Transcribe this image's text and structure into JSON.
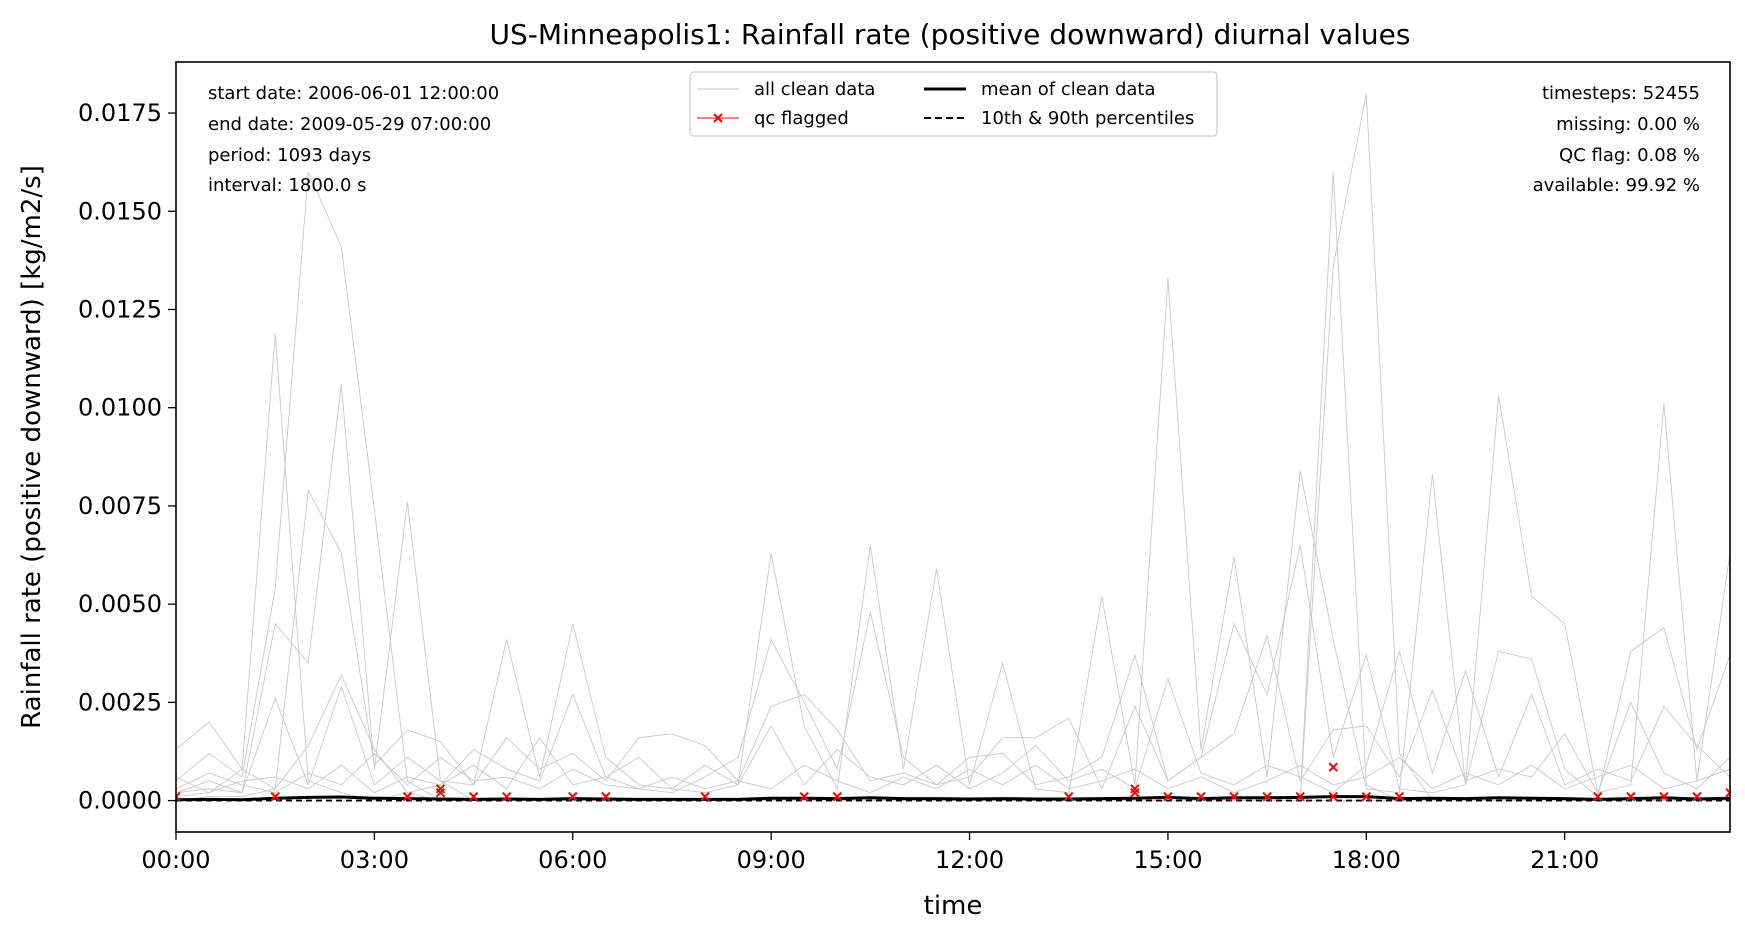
{
  "chart_data": {
    "type": "line",
    "title": "US-Minneapolis1: Rainfall rate (positive downward) diurnal values",
    "xlabel": "time",
    "ylabel": "Rainfall rate (positive downward) [kg/m2/s]",
    "xlim": [
      0,
      23.5
    ],
    "ylim": [
      -0.0008,
      0.0188
    ],
    "grid": false,
    "legend_placement": "upper center",
    "x_ticks": [
      {
        "v": 0,
        "label": "00:00"
      },
      {
        "v": 3,
        "label": "03:00"
      },
      {
        "v": 6,
        "label": "06:00"
      },
      {
        "v": 9,
        "label": "09:00"
      },
      {
        "v": 12,
        "label": "12:00"
      },
      {
        "v": 15,
        "label": "15:00"
      },
      {
        "v": 18,
        "label": "18:00"
      },
      {
        "v": 21,
        "label": "21:00"
      }
    ],
    "y_ticks": [
      {
        "v": 0,
        "label": "0.0000"
      },
      {
        "v": 0.0025,
        "label": "0.0025"
      },
      {
        "v": 0.005,
        "label": "0.0050"
      },
      {
        "v": 0.0075,
        "label": "0.0075"
      },
      {
        "v": 0.01,
        "label": "0.0100"
      },
      {
        "v": 0.0125,
        "label": "0.0125"
      },
      {
        "v": 0.015,
        "label": "0.0150"
      },
      {
        "v": 0.0175,
        "label": "0.0175"
      }
    ],
    "legend": [
      {
        "label": "all clean data",
        "color": "#c8c8c8",
        "style": "thin-line"
      },
      {
        "label": "qc flagged",
        "color": "#ff0000",
        "style": "line-x-marker"
      },
      {
        "label": "mean of clean data",
        "color": "#000000",
        "style": "thick-line"
      },
      {
        "label": "10th & 90th percentiles",
        "color": "#000000",
        "style": "dashed-line"
      }
    ],
    "info_left": [
      "start date: 2006-06-01 12:00:00",
      "end date: 2009-05-29 07:00:00",
      "period: 1093 days",
      "interval: 1800.0 s"
    ],
    "info_right": [
      "timesteps: 52455",
      "missing: 0.00 %",
      "QC flag: 0.08 %",
      "available: 99.92 %"
    ],
    "colors": {
      "clean": "#c8c8c8",
      "flag": "#ff0000",
      "mean": "#000000"
    },
    "clean_series_x": [
      0,
      0.5,
      1,
      1.5,
      2,
      2.5,
      3,
      3.5,
      4,
      4.5,
      5,
      5.5,
      6,
      6.5,
      7,
      7.5,
      8,
      8.5,
      9,
      9.5,
      10,
      10.5,
      11,
      11.5,
      12,
      12.5,
      13,
      13.5,
      14,
      14.5,
      15,
      15.5,
      16,
      16.5,
      17,
      17.5,
      18,
      18.5,
      19,
      19.5,
      20,
      20.5,
      21,
      21.5,
      22,
      22.5,
      23,
      23.5
    ],
    "clean_series": [
      [
        0.0013,
        0.002,
        0.0008,
        0.0119,
        0.0005,
        0.0002,
        0,
        0.0002,
        0,
        0,
        0,
        0,
        0,
        0,
        0,
        0,
        0,
        0,
        0,
        0,
        0,
        0,
        0,
        0,
        0,
        0,
        0,
        0,
        0,
        0,
        0,
        0,
        0,
        0,
        0,
        0.016,
        0.0004,
        0,
        0,
        0,
        0,
        0,
        0,
        0,
        0,
        0,
        0,
        0
      ],
      [
        0.0005,
        0.0012,
        0.0006,
        0.0054,
        0.016,
        0.0141,
        0.0074,
        0.0005,
        0,
        0,
        0,
        0,
        0,
        0,
        0,
        0,
        0,
        0,
        0,
        0,
        0,
        0,
        0,
        0,
        0,
        0,
        0,
        0,
        0,
        0,
        0,
        0,
        0,
        0,
        0,
        0.0136,
        0.018,
        0.0012,
        0,
        0,
        0,
        0,
        0,
        0,
        0,
        0,
        0,
        0
      ],
      [
        0.0002,
        0.0003,
        0.0002,
        0.0045,
        0.0035,
        0.0106,
        0.0008,
        0.0076,
        0.0005,
        0,
        0,
        0,
        0,
        0,
        0,
        0,
        0,
        0,
        0,
        0,
        0,
        0,
        0,
        0,
        0,
        0,
        0,
        0,
        0,
        0,
        0,
        0,
        0,
        0,
        0,
        0,
        0,
        0,
        0,
        0,
        0,
        0,
        0,
        0,
        0,
        0,
        0,
        0
      ],
      [
        0.0001,
        0.0002,
        0.0008,
        0.0003,
        0.0079,
        0.0063,
        0.0009,
        0.0018,
        0.0015,
        0.0004,
        0.0041,
        0.0006,
        0.0045,
        0.0011,
        0.0004,
        0.0003,
        0.0002,
        0.0004,
        0.0063,
        0.0019,
        0.0003,
        0.0065,
        0.0008,
        0.0059,
        0.0004,
        0.0035,
        0.0003,
        0.0002,
        0.0052,
        0.0004,
        0.0133,
        0.0013,
        0.0062,
        0.0006,
        0.0084,
        0.0041,
        0.0003,
        0.0002,
        0.0083,
        0.0004,
        0.0103,
        0.0052,
        0.0045,
        0.0002,
        0.0004,
        0.0101,
        0.0005,
        0.0063
      ],
      [
        0,
        0.0001,
        0.0001,
        0.0003,
        0.0014,
        0.0032,
        0.0013,
        0.0002,
        0.0004,
        0.0013,
        0.0008,
        0.0005,
        0.0027,
        0.0006,
        0.0003,
        0.0002,
        0.0006,
        0.0011,
        0.0041,
        0.0025,
        0.0008,
        0.0048,
        0.0011,
        0.0004,
        0.0011,
        0.0012,
        0.0004,
        0.0006,
        0.0011,
        0.0037,
        0.0005,
        0.0011,
        0.0045,
        0.0027,
        0.0065,
        0.0011,
        0.0037,
        0.0003,
        0.0002,
        0.0004,
        0.0038,
        0.0036,
        0.0008,
        0.0001,
        0.0038,
        0.0044,
        0.0013,
        0.0037
      ],
      [
        0.0002,
        0.0005,
        0.0002,
        0.0026,
        0.0004,
        0.0029,
        0.0004,
        0.0011,
        0.0005,
        0.0004,
        0.0016,
        0.0008,
        0.0012,
        0.0005,
        0.0016,
        0.0017,
        0.0014,
        0.0005,
        0.0024,
        0.0027,
        0.0018,
        0.0005,
        0.0007,
        0.0004,
        0.0006,
        0.0016,
        0.0016,
        0.0021,
        0.0003,
        0.0024,
        0.0005,
        0.0011,
        0.0017,
        0.0042,
        0.0005,
        0.0018,
        0.0019,
        0.0006,
        0.0028,
        0.0005,
        0.0008,
        0.0006,
        0.0017,
        0.0002,
        0.0025,
        0.0007,
        0.0003,
        0.0011
      ],
      [
        0.0006,
        0.0002,
        0.0005,
        0.0006,
        0.0003,
        0.0009,
        0.0002,
        0.0006,
        0.0004,
        0.0009,
        0.0003,
        0.0016,
        0.0004,
        0.0006,
        0.0011,
        0.0003,
        0.0009,
        0.0004,
        0.0019,
        0.0004,
        0.0013,
        0.0006,
        0.0004,
        0.0009,
        0.0003,
        0.0007,
        0.0014,
        0.0005,
        0.0008,
        0.0003,
        0.0031,
        0.0007,
        0.0004,
        0.0009,
        0.0006,
        0.0002,
        0.0009,
        0.0038,
        0.0007,
        0.0033,
        0.0006,
        0.0027,
        0.0004,
        0.0008,
        0.0005,
        0.0024,
        0.0014,
        0.0006
      ],
      [
        0.0003,
        0.0007,
        0.0004,
        0.0002,
        0.0007,
        0.0004,
        0.0012,
        0.0004,
        0.0011,
        0.0005,
        0.0006,
        0.0003,
        0.0008,
        0.0004,
        0.0003,
        0.0006,
        0.0003,
        0.0005,
        0.0003,
        0.0009,
        0.0005,
        0.0002,
        0.0006,
        0.0003,
        0.0008,
        0.0004,
        0.0009,
        0.0003,
        0.0005,
        0.0008,
        0.0003,
        0.0006,
        0.0002,
        0.0005,
        0.0009,
        0.0004,
        0.0006,
        0.0011,
        0.0003,
        0.0007,
        0.0004,
        0.0009,
        0.0003,
        0.0006,
        0.0009,
        0.0003,
        0.0005,
        0.0008
      ]
    ],
    "mean_series": [
      2e-05,
      3e-05,
      2e-05,
      6e-05,
      8e-05,
      9e-05,
      6e-05,
      5e-05,
      4e-05,
      3e-05,
      4e-05,
      3e-05,
      5e-05,
      4e-05,
      3e-05,
      3e-05,
      3e-05,
      3e-05,
      6e-05,
      6e-05,
      5e-05,
      7e-05,
      5e-05,
      5e-05,
      4e-05,
      5e-05,
      4e-05,
      4e-05,
      5e-05,
      6e-05,
      8e-05,
      5e-05,
      7e-05,
      7e-05,
      8e-05,
      0.0001,
      0.0001,
      5e-05,
      6e-05,
      5e-05,
      7e-05,
      6e-05,
      5e-05,
      3e-05,
      5e-05,
      7e-05,
      4e-05,
      6e-05
    ],
    "percentile_series": [
      {
        "name": "10th",
        "values": [
          0,
          0,
          0,
          0,
          0,
          0,
          0,
          0,
          0,
          0,
          0,
          0,
          0,
          0,
          0,
          0,
          0,
          0,
          0,
          0,
          0,
          0,
          0,
          0,
          0,
          0,
          0,
          0,
          0,
          0,
          0,
          0,
          0,
          0,
          0,
          0,
          0,
          0,
          0,
          0,
          0,
          0,
          0,
          0,
          0,
          0,
          0,
          0
        ]
      },
      {
        "name": "90th",
        "values": [
          0,
          0,
          0,
          0,
          0,
          0,
          0,
          0,
          0,
          0,
          0,
          0,
          0,
          0,
          0,
          0,
          0,
          0,
          0,
          0,
          0,
          0,
          0,
          0,
          0,
          0,
          0,
          0,
          0,
          0,
          0,
          0,
          0,
          0,
          0,
          0,
          0,
          0,
          0,
          0,
          0,
          0,
          0,
          0,
          0,
          0,
          0,
          0
        ]
      }
    ],
    "qc_flagged_points": [
      {
        "x": 0,
        "y": 0.0001
      },
      {
        "x": 1.5,
        "y": 0.0001
      },
      {
        "x": 3.5,
        "y": 0.0001
      },
      {
        "x": 4,
        "y": 0.0002
      },
      {
        "x": 4,
        "y": 0.0003
      },
      {
        "x": 4.5,
        "y": 0.0001
      },
      {
        "x": 5,
        "y": 0.0001
      },
      {
        "x": 6,
        "y": 0.0001
      },
      {
        "x": 6.5,
        "y": 0.0001
      },
      {
        "x": 8,
        "y": 0.0001
      },
      {
        "x": 9.5,
        "y": 0.0001
      },
      {
        "x": 10,
        "y": 0.0001
      },
      {
        "x": 13.5,
        "y": 0.0001
      },
      {
        "x": 14.5,
        "y": 0.0002
      },
      {
        "x": 14.5,
        "y": 0.0003
      },
      {
        "x": 15,
        "y": 0.0001
      },
      {
        "x": 15.5,
        "y": 0.0001
      },
      {
        "x": 16,
        "y": 0.0001
      },
      {
        "x": 16.5,
        "y": 0.0001
      },
      {
        "x": 17,
        "y": 0.0001
      },
      {
        "x": 17.5,
        "y": 0.0001
      },
      {
        "x": 17.5,
        "y": 0.00085
      },
      {
        "x": 18,
        "y": 0.0001
      },
      {
        "x": 18.5,
        "y": 0.0001
      },
      {
        "x": 21.5,
        "y": 0.0001
      },
      {
        "x": 22,
        "y": 0.0001
      },
      {
        "x": 22.5,
        "y": 0.0001
      },
      {
        "x": 23,
        "y": 0.0001
      },
      {
        "x": 23.5,
        "y": 0.0002
      }
    ]
  }
}
